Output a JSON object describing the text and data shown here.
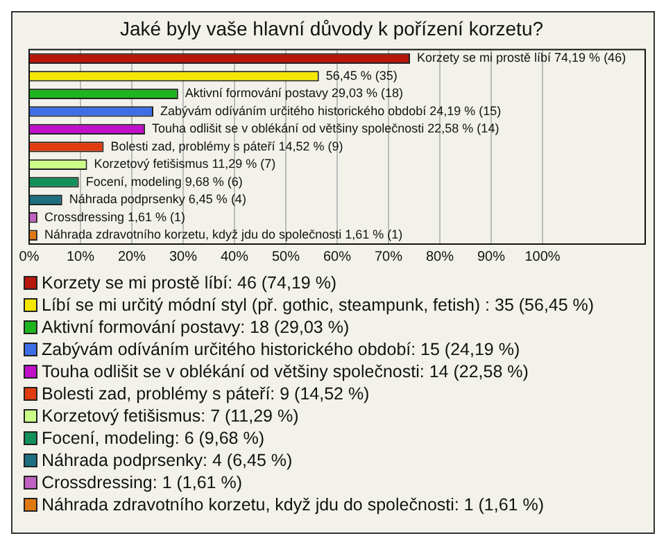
{
  "chart_data": {
    "type": "bar",
    "orientation": "horizontal",
    "stacked": true,
    "title": "Jaké byly vaše hlavní důvody k pořízení korzetu?",
    "categories": [
      null,
      null,
      null,
      null,
      null,
      null,
      null,
      null,
      null,
      null,
      null
    ],
    "xlim": [
      0,
      120
    ],
    "xticks": [
      {
        "value": 0,
        "label": "0%"
      },
      {
        "value": 10,
        "label": "10%"
      },
      {
        "value": 20,
        "label": "20%"
      },
      {
        "value": 30,
        "label": "30%"
      },
      {
        "value": 40,
        "label": "40%"
      },
      {
        "value": 50,
        "label": "50%"
      },
      {
        "value": 60,
        "label": "60%"
      },
      {
        "value": 70,
        "label": "70%"
      },
      {
        "value": 80,
        "label": "80%"
      },
      {
        "value": 90,
        "label": "90%"
      },
      {
        "value": 100,
        "label": "100%"
      }
    ],
    "grid": "x",
    "legend": "bottom",
    "series": [
      {
        "name": "Korzety se mi prostě líbí: 46 (74,19 %)",
        "color": "#b8170c",
        "values": [
          74.19,
          null,
          null,
          null,
          null,
          null,
          null,
          null,
          null,
          null,
          null
        ],
        "value_labels": [
          "Korzety se mi prostě líbí 74,19 % (46)",
          null,
          null,
          null,
          null,
          null,
          null,
          null,
          null,
          null,
          null
        ]
      },
      {
        "name": "Líbí se mi určitý módní styl (př. gothic, steampunk, fetish) : 35 (56,45 %)",
        "color": "#f5e600",
        "values": [
          null,
          56.45,
          null,
          null,
          null,
          null,
          null,
          null,
          null,
          null,
          null
        ],
        "value_labels": [
          null,
          "56,45 % (35)",
          null,
          null,
          null,
          null,
          null,
          null,
          null,
          null,
          null
        ]
      },
      {
        "name": "Aktivní formování postavy: 18 (29,03 %)",
        "color": "#1eb41e",
        "values": [
          null,
          null,
          29.03,
          null,
          null,
          null,
          null,
          null,
          null,
          null,
          null
        ],
        "value_labels": [
          null,
          null,
          "Aktivní formování postavy 29,03 % (18)",
          null,
          null,
          null,
          null,
          null,
          null,
          null,
          null
        ]
      },
      {
        "name": "Zabývám odíváním určitého historického období: 15 (24,19 %)",
        "color": "#3c6ee6",
        "values": [
          null,
          null,
          null,
          24.19,
          null,
          null,
          null,
          null,
          null,
          null,
          null
        ],
        "value_labels": [
          null,
          null,
          null,
          "Zabývám odíváním určitého historického období 24,19 % (15)",
          null,
          null,
          null,
          null,
          null,
          null,
          null
        ]
      },
      {
        "name": "Touha odlišit se v oblékání od většiny společnosti: 14 (22,58 %)",
        "color": "#c010c8",
        "values": [
          null,
          null,
          null,
          null,
          22.58,
          null,
          null,
          null,
          null,
          null,
          null
        ],
        "value_labels": [
          null,
          null,
          null,
          null,
          "Touha odlišit se v oblékání od většiny společnosti 22,58 % (14)",
          null,
          null,
          null,
          null,
          null,
          null
        ]
      },
      {
        "name": "Bolesti zad, problémy s páteří: 9 (14,52 %)",
        "color": "#e03c10",
        "values": [
          null,
          null,
          null,
          null,
          null,
          14.52,
          null,
          null,
          null,
          null,
          null
        ],
        "value_labels": [
          null,
          null,
          null,
          null,
          null,
          "Bolesti zad, problémy s páteří 14,52 % (9)",
          null,
          null,
          null,
          null,
          null
        ]
      },
      {
        "name": "Korzetový fetišismus: 7 (11,29 %)",
        "color": "#ccff88",
        "values": [
          null,
          null,
          null,
          null,
          null,
          null,
          11.29,
          null,
          null,
          null,
          null
        ],
        "value_labels": [
          null,
          null,
          null,
          null,
          null,
          null,
          "Korzetový fetišismus 11,29 % (7)",
          null,
          null,
          null,
          null
        ]
      },
      {
        "name": "Focení, modeling: 6 (9,68 %)",
        "color": "#12905a",
        "values": [
          null,
          null,
          null,
          null,
          null,
          null,
          null,
          9.68,
          null,
          null,
          null
        ],
        "value_labels": [
          null,
          null,
          null,
          null,
          null,
          null,
          null,
          "Focení, modeling 9,68 % (6)",
          null,
          null,
          null
        ]
      },
      {
        "name": "Náhrada podprsenky: 4 (6,45 %)",
        "color": "#1c6e80",
        "values": [
          null,
          null,
          null,
          null,
          null,
          null,
          null,
          null,
          6.45,
          null,
          null
        ],
        "value_labels": [
          null,
          null,
          null,
          null,
          null,
          null,
          null,
          null,
          "Náhrada podprsenky 6,45 % (4)",
          null,
          null
        ]
      },
      {
        "name": "Crossdressing: 1 (1,61 %)",
        "color": "#c060c0",
        "values": [
          null,
          null,
          null,
          null,
          null,
          null,
          null,
          null,
          null,
          1.61,
          null
        ],
        "value_labels": [
          null,
          null,
          null,
          null,
          null,
          null,
          null,
          null,
          null,
          "Crossdressing 1,61 % (1)",
          null
        ]
      },
      {
        "name": "Náhrada zdravotního korzetu, když jdu do společnosti: 1 (1,61 %)",
        "color": "#e07810",
        "values": [
          null,
          null,
          null,
          null,
          null,
          null,
          null,
          null,
          null,
          null,
          1.61
        ],
        "value_labels": [
          null,
          null,
          null,
          null,
          null,
          null,
          null,
          null,
          null,
          null,
          "Náhrada zdravotního korzetu, když jdu do společnosti 1,61 % (1)"
        ]
      }
    ]
  }
}
